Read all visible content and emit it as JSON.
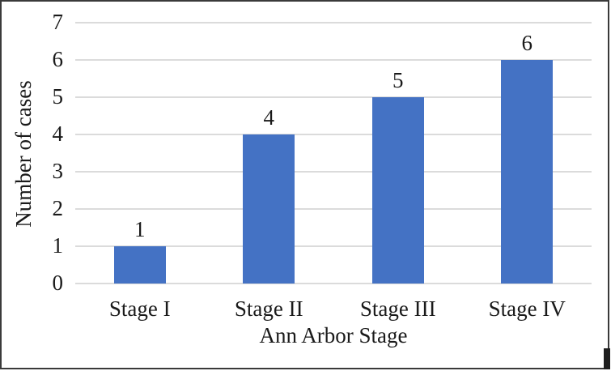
{
  "chart_data": {
    "type": "bar",
    "title": "",
    "categories": [
      "Stage I",
      "Stage II",
      "Stage III",
      "Stage IV"
    ],
    "values": [
      1,
      4,
      5,
      6
    ],
    "data_labels": [
      "1",
      "4",
      "5",
      "6"
    ],
    "xlabel": "Ann Arbor Stage",
    "ylabel": "Number of cases",
    "ylim": [
      0,
      7
    ],
    "yticks": [
      "0",
      "1",
      "2",
      "3",
      "4",
      "5",
      "6",
      "7"
    ],
    "grid": true,
    "legend": "none",
    "colors": {
      "bar": "#4472C4",
      "gridline": "#DBDBDB",
      "text": "#1a1a1a",
      "frame_border": "#3a3a3a",
      "background": "#FFFFFF",
      "artifact": "#1f1f1f"
    }
  }
}
